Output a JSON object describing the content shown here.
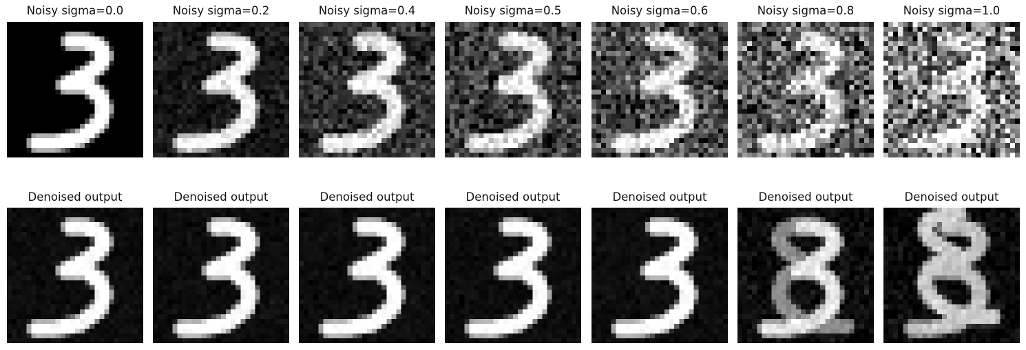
{
  "figure": {
    "top_row": {
      "titles": [
        "Noisy sigma=0.0",
        "Noisy sigma=0.2",
        "Noisy sigma=0.4",
        "Noisy sigma=0.5",
        "Noisy sigma=0.6",
        "Noisy sigma=0.8",
        "Noisy sigma=1.0"
      ],
      "sigma": [
        0.0,
        0.2,
        0.4,
        0.5,
        0.6,
        0.8,
        1.0
      ]
    },
    "bottom_row": {
      "titles": [
        "Denoised output",
        "Denoised output",
        "Denoised output",
        "Denoised output",
        "Denoised output",
        "Denoised output",
        "Denoised output"
      ]
    },
    "colormap": "gray",
    "subject": "handwritten digit 3"
  }
}
